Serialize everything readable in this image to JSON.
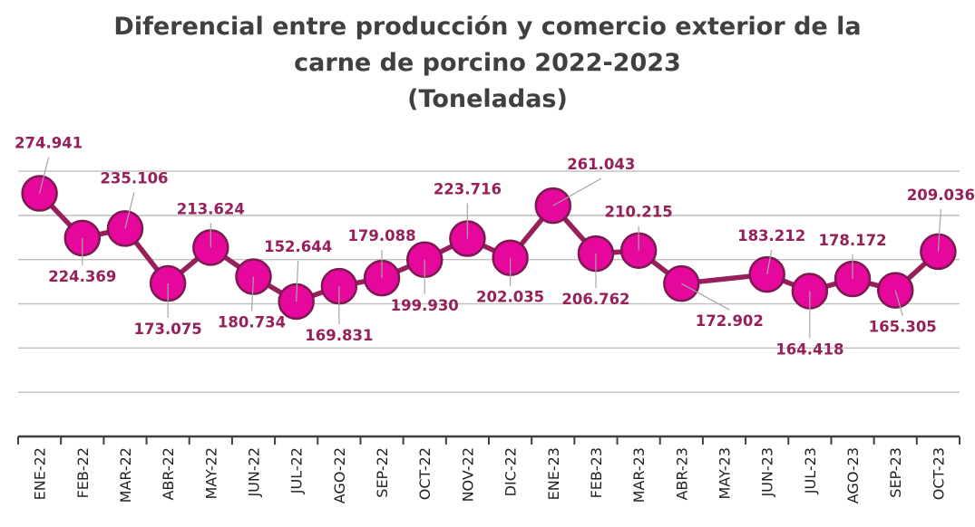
{
  "chart_data": {
    "type": "line",
    "title_lines": [
      "Diferencial entre producción y comercio exterior de la",
      "carne de porcino 2022-2023",
      "(Toneladas)"
    ],
    "categories": [
      "ENE-22",
      "FEB-22",
      "MAR-22",
      "ABR-22",
      "MAY-22",
      "JUN-22",
      "JUL-22",
      "AGO-22",
      "SEP-22",
      "OCT-22",
      "NOV-22",
      "DIC-22",
      "ENE-23",
      "FEB-23",
      "MAR-23",
      "ABR-23",
      "MAY-23",
      "JUN-23",
      "JUL-23",
      "AGO-23",
      "SEP-23",
      "OCT-23"
    ],
    "values": [
      274941,
      224369,
      235106,
      173075,
      213624,
      180734,
      152644,
      169831,
      179088,
      199930,
      223716,
      202035,
      261043,
      206762,
      210215,
      172902,
      null,
      183212,
      164418,
      178172,
      165305,
      209036
    ],
    "data_labels": [
      "274.941",
      "224.369",
      "235.106",
      "173.075",
      "213.624",
      "180.734",
      "152.644",
      "169.831",
      "179.088",
      "199.930",
      "223.716",
      "202.035",
      "261.043",
      "206.762",
      "210.215",
      "172.902",
      "",
      "183.212",
      "164.418",
      "178.172",
      "165.305",
      "209.036"
    ],
    "ylim": [
      0,
      340000
    ],
    "y_gridlines": [
      50000,
      100000,
      150000,
      200000,
      250000,
      300000
    ],
    "gap_handling": "connect",
    "grid": true,
    "legend": "none",
    "colors": {
      "line": "#96205a",
      "marker_fill": "#e6079d",
      "marker_stroke": "#7a1a4f",
      "label": "#96205a",
      "grid": "#bfbfbf",
      "axis": "#404040",
      "title": "#404040"
    }
  }
}
